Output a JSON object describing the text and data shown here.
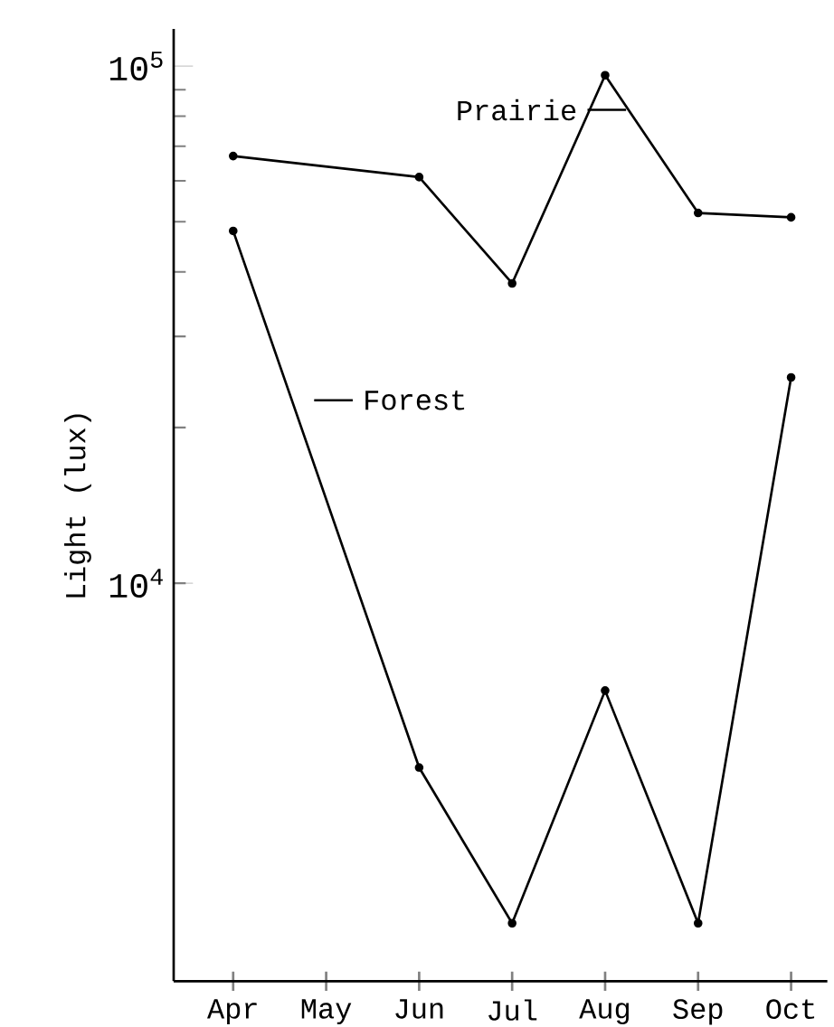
{
  "chart_data": {
    "type": "line",
    "ylabel": "Light (lux)",
    "categories": [
      "Apr",
      "May",
      "Jun",
      "Jul",
      "Aug",
      "Sep",
      "Oct"
    ],
    "series": [
      {
        "name": "Prairie",
        "color": "#000000",
        "values": [
          67000,
          null,
          61000,
          38000,
          96000,
          52000,
          51000
        ]
      },
      {
        "name": "Forest",
        "color": "#000000",
        "values": [
          48000,
          null,
          4400,
          2200,
          6200,
          2200,
          25000
        ]
      }
    ],
    "log": "y",
    "ylim": [
      1700,
      118000
    ],
    "yticks": [
      {
        "value": 10000,
        "label": "10$^{4}$"
      },
      {
        "value": 100000,
        "label": "10$^{5}$"
      }
    ],
    "grid": false,
    "marker": "circle",
    "line_style": "solid"
  }
}
